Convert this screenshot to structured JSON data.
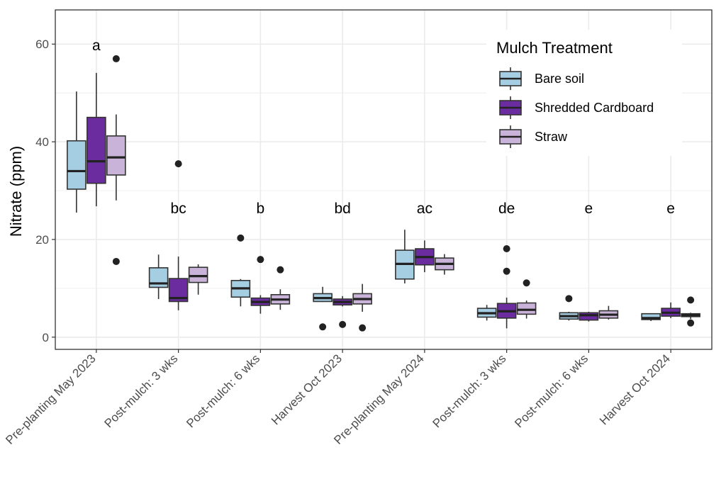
{
  "chart_data": {
    "type": "boxplot",
    "title": "",
    "xlabel": "",
    "ylabel": "Nitrate (ppm)",
    "ylim": [
      -2.5,
      67
    ],
    "yticks": [
      0,
      20,
      40,
      60
    ],
    "grid": true,
    "legend_position": "top-right",
    "legend_title": "Mulch Treatment",
    "categories": [
      "Pre-planting May 2023",
      "Post-mulch: 3 wks",
      "Post-mulch: 6 wks",
      "Harvest Oct 2023",
      "Pre-planting May 2024",
      "Post-mulch: 3 wks",
      "Post-mulch: 6 wks",
      "Harvest Oct 2024"
    ],
    "significance_letters": [
      "a",
      "bc",
      "b",
      "bd",
      "ac",
      "de",
      "e",
      "e"
    ],
    "series": [
      {
        "name": "Bare soil",
        "color": "#a6cee3",
        "boxes": [
          {
            "whisker_low": 25.5,
            "q1": 30.3,
            "median": 34.0,
            "q3": 40.2,
            "whisker_high": 50.3,
            "outliers": []
          },
          {
            "whisker_low": 7.8,
            "q1": 10.2,
            "median": 11.0,
            "q3": 14.2,
            "whisker_high": 16.9,
            "outliers": []
          },
          {
            "whisker_low": 6.3,
            "q1": 8.2,
            "median": 10.0,
            "q3": 11.6,
            "whisker_high": 11.9,
            "outliers": [
              20.3
            ]
          },
          {
            "whisker_low": 7.2,
            "q1": 7.3,
            "median": 8.0,
            "q3": 8.9,
            "whisker_high": 10.3,
            "outliers": [
              2.1
            ]
          },
          {
            "whisker_low": 11.0,
            "q1": 11.9,
            "median": 15.0,
            "q3": 17.8,
            "whisker_high": 22.0,
            "outliers": []
          },
          {
            "whisker_low": 3.4,
            "q1": 4.1,
            "median": 4.9,
            "q3": 5.9,
            "whisker_high": 6.6,
            "outliers": []
          },
          {
            "whisker_low": 3.4,
            "q1": 3.7,
            "median": 4.3,
            "q3": 5.0,
            "whisker_high": 5.2,
            "outliers": [
              7.9
            ]
          },
          {
            "whisker_low": 3.3,
            "q1": 3.6,
            "median": 3.9,
            "q3": 4.8,
            "whisker_high": 4.9,
            "outliers": []
          }
        ]
      },
      {
        "name": "Shredded Cardboard",
        "color": "#6a2c9e",
        "boxes": [
          {
            "whisker_low": 26.8,
            "q1": 31.5,
            "median": 36.0,
            "q3": 45.0,
            "whisker_high": 54.1,
            "outliers": []
          },
          {
            "whisker_low": 5.5,
            "q1": 7.3,
            "median": 8.0,
            "q3": 12.0,
            "whisker_high": 16.5,
            "outliers": [
              35.5
            ]
          },
          {
            "whisker_low": 4.8,
            "q1": 6.5,
            "median": 7.2,
            "q3": 8.0,
            "whisker_high": 8.6,
            "outliers": [
              15.9
            ]
          },
          {
            "whisker_low": 6.3,
            "q1": 6.6,
            "median": 7.2,
            "q3": 7.8,
            "whisker_high": 8.4,
            "outliers": [
              2.6
            ]
          },
          {
            "whisker_low": 13.3,
            "q1": 14.8,
            "median": 16.4,
            "q3": 18.1,
            "whisker_high": 19.8,
            "outliers": []
          },
          {
            "whisker_low": 1.8,
            "q1": 3.9,
            "median": 5.3,
            "q3": 6.9,
            "whisker_high": 8.1,
            "outliers": [
              18.1,
              13.5
            ]
          },
          {
            "whisker_low": 3.2,
            "q1": 3.5,
            "median": 4.5,
            "q3": 5.0,
            "whisker_high": 5.2,
            "outliers": []
          },
          {
            "whisker_low": 3.9,
            "q1": 4.3,
            "median": 5.0,
            "q3": 5.9,
            "whisker_high": 7.1,
            "outliers": []
          }
        ]
      },
      {
        "name": "Straw",
        "color": "#c9b3d8",
        "boxes": [
          {
            "whisker_low": 28.0,
            "q1": 33.2,
            "median": 36.8,
            "q3": 41.2,
            "whisker_high": 45.6,
            "outliers": [
              57.0,
              15.5
            ]
          },
          {
            "whisker_low": 8.7,
            "q1": 11.2,
            "median": 12.5,
            "q3": 14.3,
            "whisker_high": 14.9,
            "outliers": []
          },
          {
            "whisker_low": 5.6,
            "q1": 6.8,
            "median": 7.7,
            "q3": 8.7,
            "whisker_high": 9.8,
            "outliers": [
              13.8
            ]
          },
          {
            "whisker_low": 5.2,
            "q1": 6.8,
            "median": 7.8,
            "q3": 8.9,
            "whisker_high": 10.9,
            "outliers": [
              1.9
            ]
          },
          {
            "whisker_low": 12.8,
            "q1": 13.8,
            "median": 15.0,
            "q3": 16.2,
            "whisker_high": 17.0,
            "outliers": []
          },
          {
            "whisker_low": 3.8,
            "q1": 4.7,
            "median": 5.6,
            "q3": 7.0,
            "whisker_high": 7.5,
            "outliers": [
              11.1
            ]
          },
          {
            "whisker_low": 3.6,
            "q1": 3.9,
            "median": 4.6,
            "q3": 5.4,
            "whisker_high": 6.4,
            "outliers": []
          },
          {
            "whisker_low": 3.7,
            "q1": 4.2,
            "median": 4.5,
            "q3": 4.8,
            "whisker_high": 5.0,
            "outliers": [
              7.6,
              2.9
            ]
          }
        ]
      }
    ]
  }
}
